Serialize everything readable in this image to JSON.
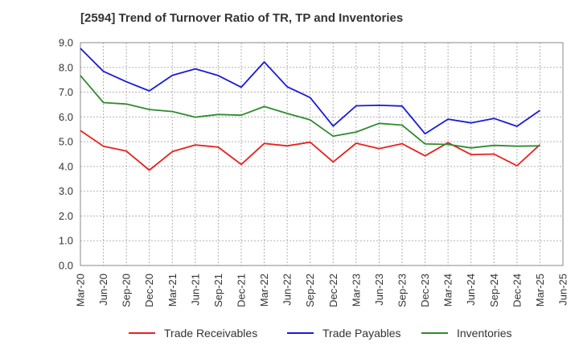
{
  "chart_data": {
    "type": "line",
    "title": "[2594]  Trend of Turnover Ratio of TR, TP and Inventories",
    "xlabel": "",
    "ylabel": "",
    "ylim": [
      0,
      9
    ],
    "yticks": [
      "0.0",
      "1.0",
      "2.0",
      "3.0",
      "4.0",
      "5.0",
      "6.0",
      "7.0",
      "8.0",
      "9.0"
    ],
    "categories": [
      "Mar-20",
      "Jun-20",
      "Sep-20",
      "Dec-20",
      "Mar-21",
      "Jun-21",
      "Sep-21",
      "Dec-21",
      "Mar-22",
      "Jun-22",
      "Sep-22",
      "Dec-22",
      "Mar-23",
      "Jun-23",
      "Sep-23",
      "Dec-23",
      "Mar-24",
      "Jun-24",
      "Sep-24",
      "Dec-24",
      "Mar-25",
      "Jun-25"
    ],
    "grid": true,
    "legend_position": "bottom",
    "series": [
      {
        "name": "Trade Receivables",
        "color": "#e8211d",
        "values": [
          5.45,
          4.82,
          4.62,
          3.85,
          4.6,
          4.87,
          4.78,
          4.08,
          4.93,
          4.83,
          4.98,
          4.18,
          4.94,
          4.72,
          4.92,
          4.43,
          4.96,
          4.48,
          4.5,
          4.03,
          4.88,
          null
        ]
      },
      {
        "name": "Trade Payables",
        "color": "#1a1adb",
        "values": [
          8.77,
          7.84,
          7.42,
          7.05,
          7.68,
          7.94,
          7.67,
          7.2,
          8.22,
          7.22,
          6.78,
          5.63,
          6.45,
          6.47,
          6.44,
          5.32,
          5.91,
          5.76,
          5.94,
          5.62,
          6.26,
          null
        ]
      },
      {
        "name": "Inventories",
        "color": "#2e8b2e",
        "values": [
          7.67,
          6.58,
          6.52,
          6.3,
          6.22,
          5.99,
          6.1,
          6.07,
          6.42,
          6.14,
          5.88,
          5.22,
          5.39,
          5.74,
          5.67,
          4.91,
          4.89,
          4.75,
          4.85,
          4.82,
          4.83,
          null
        ]
      }
    ]
  }
}
